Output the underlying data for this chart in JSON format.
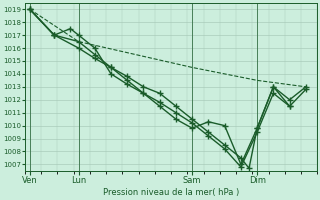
{
  "xlabel": "Pression niveau de la mer( hPa )",
  "bg_color": "#cceedd",
  "grid_color": "#aaccbb",
  "line_color": "#1a5c2a",
  "ylim": [
    1006.5,
    1019.5
  ],
  "yticks": [
    1007,
    1008,
    1009,
    1010,
    1011,
    1012,
    1013,
    1014,
    1015,
    1016,
    1017,
    1018,
    1019
  ],
  "xtick_labels": [
    "Ven",
    "Lun",
    "Sam",
    "Dim"
  ],
  "xtick_positions": [
    0,
    3,
    10,
    14
  ],
  "xlim": [
    -0.3,
    17.5
  ],
  "lines": [
    {
      "x": [
        0,
        3,
        10,
        14,
        17
      ],
      "y": [
        1019,
        1016.5,
        1014.5,
        1013.5,
        1013
      ],
      "style": "--",
      "marker": null,
      "lw": 0.8,
      "ms": 0
    },
    {
      "x": [
        0,
        1.5,
        3,
        4,
        5,
        6,
        7,
        8,
        9,
        10,
        11,
        12,
        13,
        14,
        15,
        16,
        17
      ],
      "y": [
        1019,
        1017,
        1016.5,
        1015.5,
        1014.5,
        1013.5,
        1012.5,
        1011.8,
        1011,
        1010.2,
        1009.2,
        1008.2,
        1006.8,
        1009.5,
        1012.5,
        1011.5,
        1012.8
      ],
      "style": "-",
      "marker": "+",
      "lw": 1.0,
      "ms": 4
    },
    {
      "x": [
        0,
        1.5,
        3,
        4,
        5,
        6,
        7,
        8,
        9,
        10,
        11,
        12,
        13,
        13.5,
        14,
        15,
        16,
        17
      ],
      "y": [
        1019,
        1017,
        1016,
        1015.2,
        1014.5,
        1013.8,
        1013,
        1012.5,
        1011.5,
        1010.5,
        1009.5,
        1008.5,
        1007.5,
        1006.7,
        1009.8,
        1013,
        1012,
        1013
      ],
      "style": "-",
      "marker": "+",
      "lw": 1.0,
      "ms": 4
    },
    {
      "x": [
        0,
        1.5,
        2.5,
        3,
        4,
        5,
        6,
        7,
        8,
        9,
        10,
        11,
        12,
        13,
        14,
        15,
        16
      ],
      "y": [
        1019,
        1017,
        1017.5,
        1017,
        1016,
        1014,
        1013.2,
        1012.5,
        1011.5,
        1010.5,
        1009.8,
        1010.3,
        1010,
        1007,
        1009.8,
        1013,
        1011.5
      ],
      "style": "-",
      "marker": "+",
      "lw": 1.0,
      "ms": 4
    }
  ]
}
